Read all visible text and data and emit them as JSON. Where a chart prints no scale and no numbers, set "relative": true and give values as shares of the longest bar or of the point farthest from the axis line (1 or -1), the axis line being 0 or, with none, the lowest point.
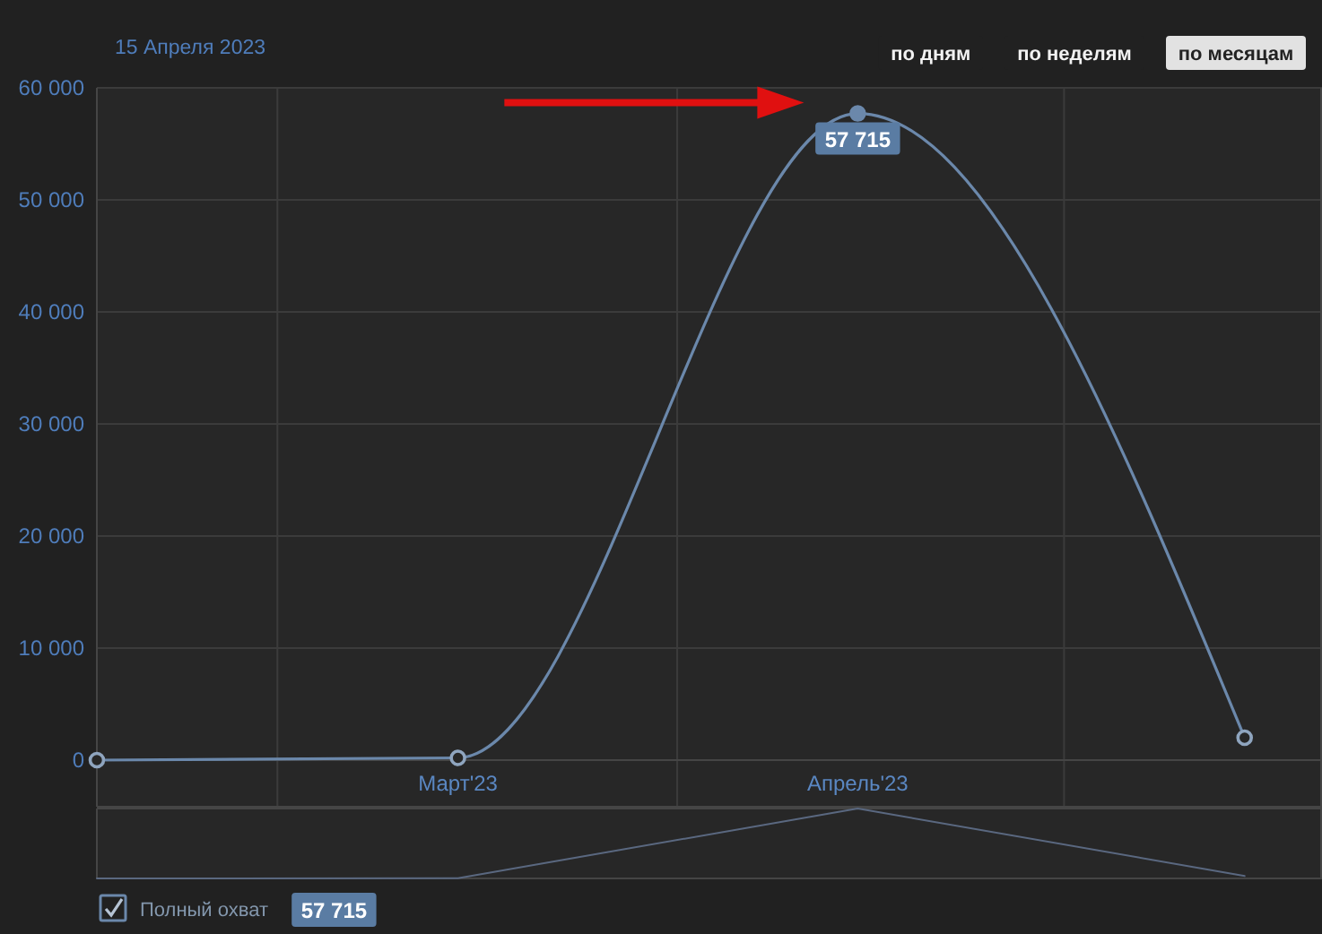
{
  "chart_data": [
    {
      "type": "line",
      "annotations": [
        "15 Апреля 2023",
        "по дням",
        "по неделям",
        "по месяцам",
        "57 715"
      ],
      "x": [
        "2023-02",
        "2023-03",
        "2023-04",
        "2023-05"
      ],
      "series": [
        {
          "name": "Полный охват",
          "color": "#6b88ab",
          "values": [
            0,
            200,
            57715,
            2000
          ],
          "value_labels": [
            null,
            null,
            "57 715",
            null
          ]
        }
      ],
      "xlim": [
        "2023-02-01",
        "2023-05-07"
      ],
      "xticks": [
        {
          "value": "2023-02-15",
          "label": null
        },
        {
          "value": "2023-03",
          "label": "Март'23"
        },
        {
          "value": "2023-03-18",
          "label": null
        },
        {
          "value": "2023-04",
          "label": "Апрель'23"
        },
        {
          "value": "2023-04-17",
          "label": null
        }
      ],
      "ylim": [
        0,
        60000
      ],
      "yticks": [
        0,
        {
          "value": 10000,
          "label": "10 000"
        },
        {
          "value": 20000,
          "label": "20 000"
        },
        {
          "value": 30000,
          "label": "30 000"
        },
        {
          "value": 40000,
          "label": "40 000"
        },
        {
          "value": 50000,
          "label": "50 000"
        },
        {
          "value": 60000,
          "label": "60 000"
        }
      ],
      "grid": true,
      "marker": "circle",
      "legend": "bottom left"
    },
    {
      "type": "line",
      "x": [
        "2023-02",
        "2023-03",
        "2023-04",
        "2023-05"
      ],
      "series": [
        {
          "color": "#5a6880",
          "values": [
            0,
            0.0035,
            1,
            0.035
          ]
        }
      ],
      "relative": true,
      "xlim": [
        "2023-02-01",
        "2023-05-07"
      ]
    }
  ]
}
